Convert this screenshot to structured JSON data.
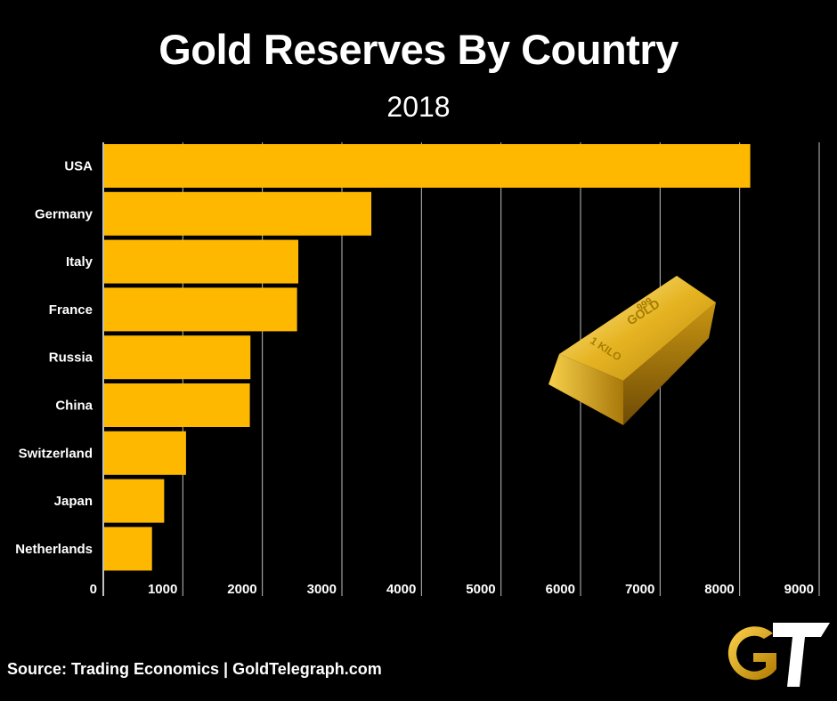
{
  "header": {
    "title": "Gold Reserves By Country",
    "subtitle": "2018"
  },
  "footer": {
    "source": "Source: Trading Economics | GoldTelegraph.com"
  },
  "logo": {
    "label": "GT",
    "icon": "gold-telegraph-logo-icon"
  },
  "decoration": {
    "icon": "gold-bar-icon",
    "stamp_top": "999",
    "stamp_mid": "GOLD",
    "stamp_side": "1 KILO"
  },
  "colors": {
    "bar": "#FFB800",
    "grid": "#ffffff",
    "background": "#000000"
  },
  "chart_data": {
    "type": "bar",
    "orientation": "horizontal",
    "title": "Gold Reserves By Country",
    "subtitle": "2018",
    "categories": [
      "USA",
      "Germany",
      "Italy",
      "France",
      "Russia",
      "China",
      "Switzerland",
      "Japan",
      "Netherlands"
    ],
    "values": [
      8133.5,
      3369.7,
      2451.8,
      2436.0,
      1850.0,
      1842.6,
      1040.0,
      765.2,
      612.5
    ],
    "xlabel": "",
    "ylabel": "",
    "xlim": [
      0,
      9000
    ],
    "xticks": [
      0,
      1000,
      2000,
      3000,
      4000,
      5000,
      6000,
      7000,
      8000,
      9000
    ],
    "xtick_labels": [
      "0",
      "1000",
      "2000",
      "3000",
      "4000",
      "5000",
      "6000",
      "7000",
      "8000",
      "9000"
    ],
    "grid": true,
    "legend": "none"
  }
}
